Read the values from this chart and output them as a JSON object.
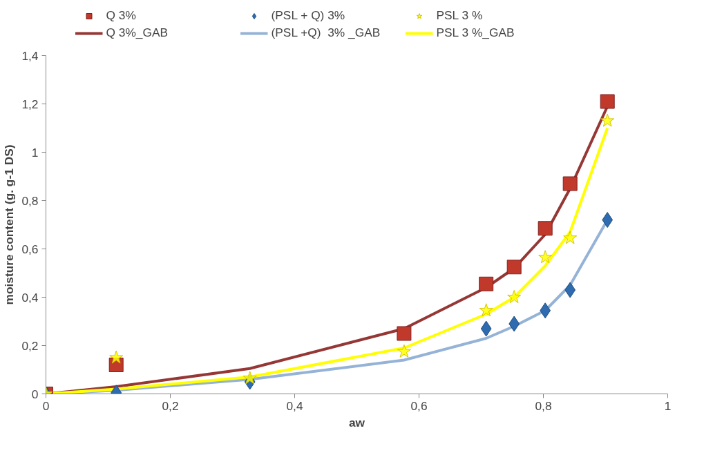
{
  "chart_data": {
    "type": "scatter",
    "xlabel": "aw",
    "ylabel": "moisture content (g. g-1 DS)",
    "x": [
      0,
      0.113,
      0.328,
      0.576,
      0.708,
      0.753,
      0.803,
      0.843,
      0.903
    ],
    "xlim": [
      0,
      1
    ],
    "xticks": [
      {
        "value": 0,
        "label": "0"
      },
      {
        "value": 0.2,
        "label": "0,2"
      },
      {
        "value": 0.4,
        "label": "0,4"
      },
      {
        "value": 0.6,
        "label": "0,6"
      },
      {
        "value": 0.8,
        "label": "0,8"
      },
      {
        "value": 1,
        "label": "1"
      }
    ],
    "ylim": [
      0,
      1.4
    ],
    "yticks": [
      {
        "value": 0,
        "label": "0"
      },
      {
        "value": 0.2,
        "label": "0,2"
      },
      {
        "value": 0.4,
        "label": "0,4"
      },
      {
        "value": 0.6,
        "label": "0,6"
      },
      {
        "value": 0.8,
        "label": "0,8"
      },
      {
        "value": 1,
        "label": "1"
      },
      {
        "value": 1.2,
        "label": "1,2"
      },
      {
        "value": 1.4,
        "label": "1,4"
      }
    ],
    "grid": false,
    "legend": "top",
    "series": [
      {
        "name": "Q 3%",
        "marker": "square",
        "color": "#c0392b",
        "values": [
          0,
          0.12,
          null,
          0.25,
          0.455,
          0.525,
          0.685,
          0.87,
          1.21
        ]
      },
      {
        "name": "Q 3%_GAB",
        "type": "line",
        "line_style": "solid",
        "color": "#953735",
        "values": [
          0,
          0.03,
          0.105,
          0.27,
          0.44,
          0.52,
          0.66,
          0.85,
          1.19
        ]
      },
      {
        "name": "(PSL + Q) 3%",
        "marker": "diamond",
        "color": "#2e6bb0",
        "values": [
          0,
          0.005,
          0.05,
          null,
          0.27,
          0.29,
          0.345,
          0.43,
          0.72
        ]
      },
      {
        "name": "(PSL +Q)  3% _GAB",
        "type": "line",
        "line_style": "solid",
        "color": "#95b3d7",
        "values": [
          0,
          0.015,
          0.06,
          0.14,
          0.23,
          0.28,
          0.345,
          0.45,
          0.72
        ]
      },
      {
        "name": "PSL 3 %",
        "marker": "star",
        "color": "#ffff00",
        "values": [
          0,
          0.15,
          0.065,
          0.175,
          0.345,
          0.4,
          0.565,
          0.645,
          1.13
        ]
      },
      {
        "name": "PSL 3 %_GAB",
        "type": "line",
        "line_style": "solid",
        "color": "#ffff00",
        "values": [
          0,
          0.02,
          0.07,
          0.19,
          0.33,
          0.4,
          0.53,
          0.67,
          1.1
        ]
      }
    ]
  }
}
